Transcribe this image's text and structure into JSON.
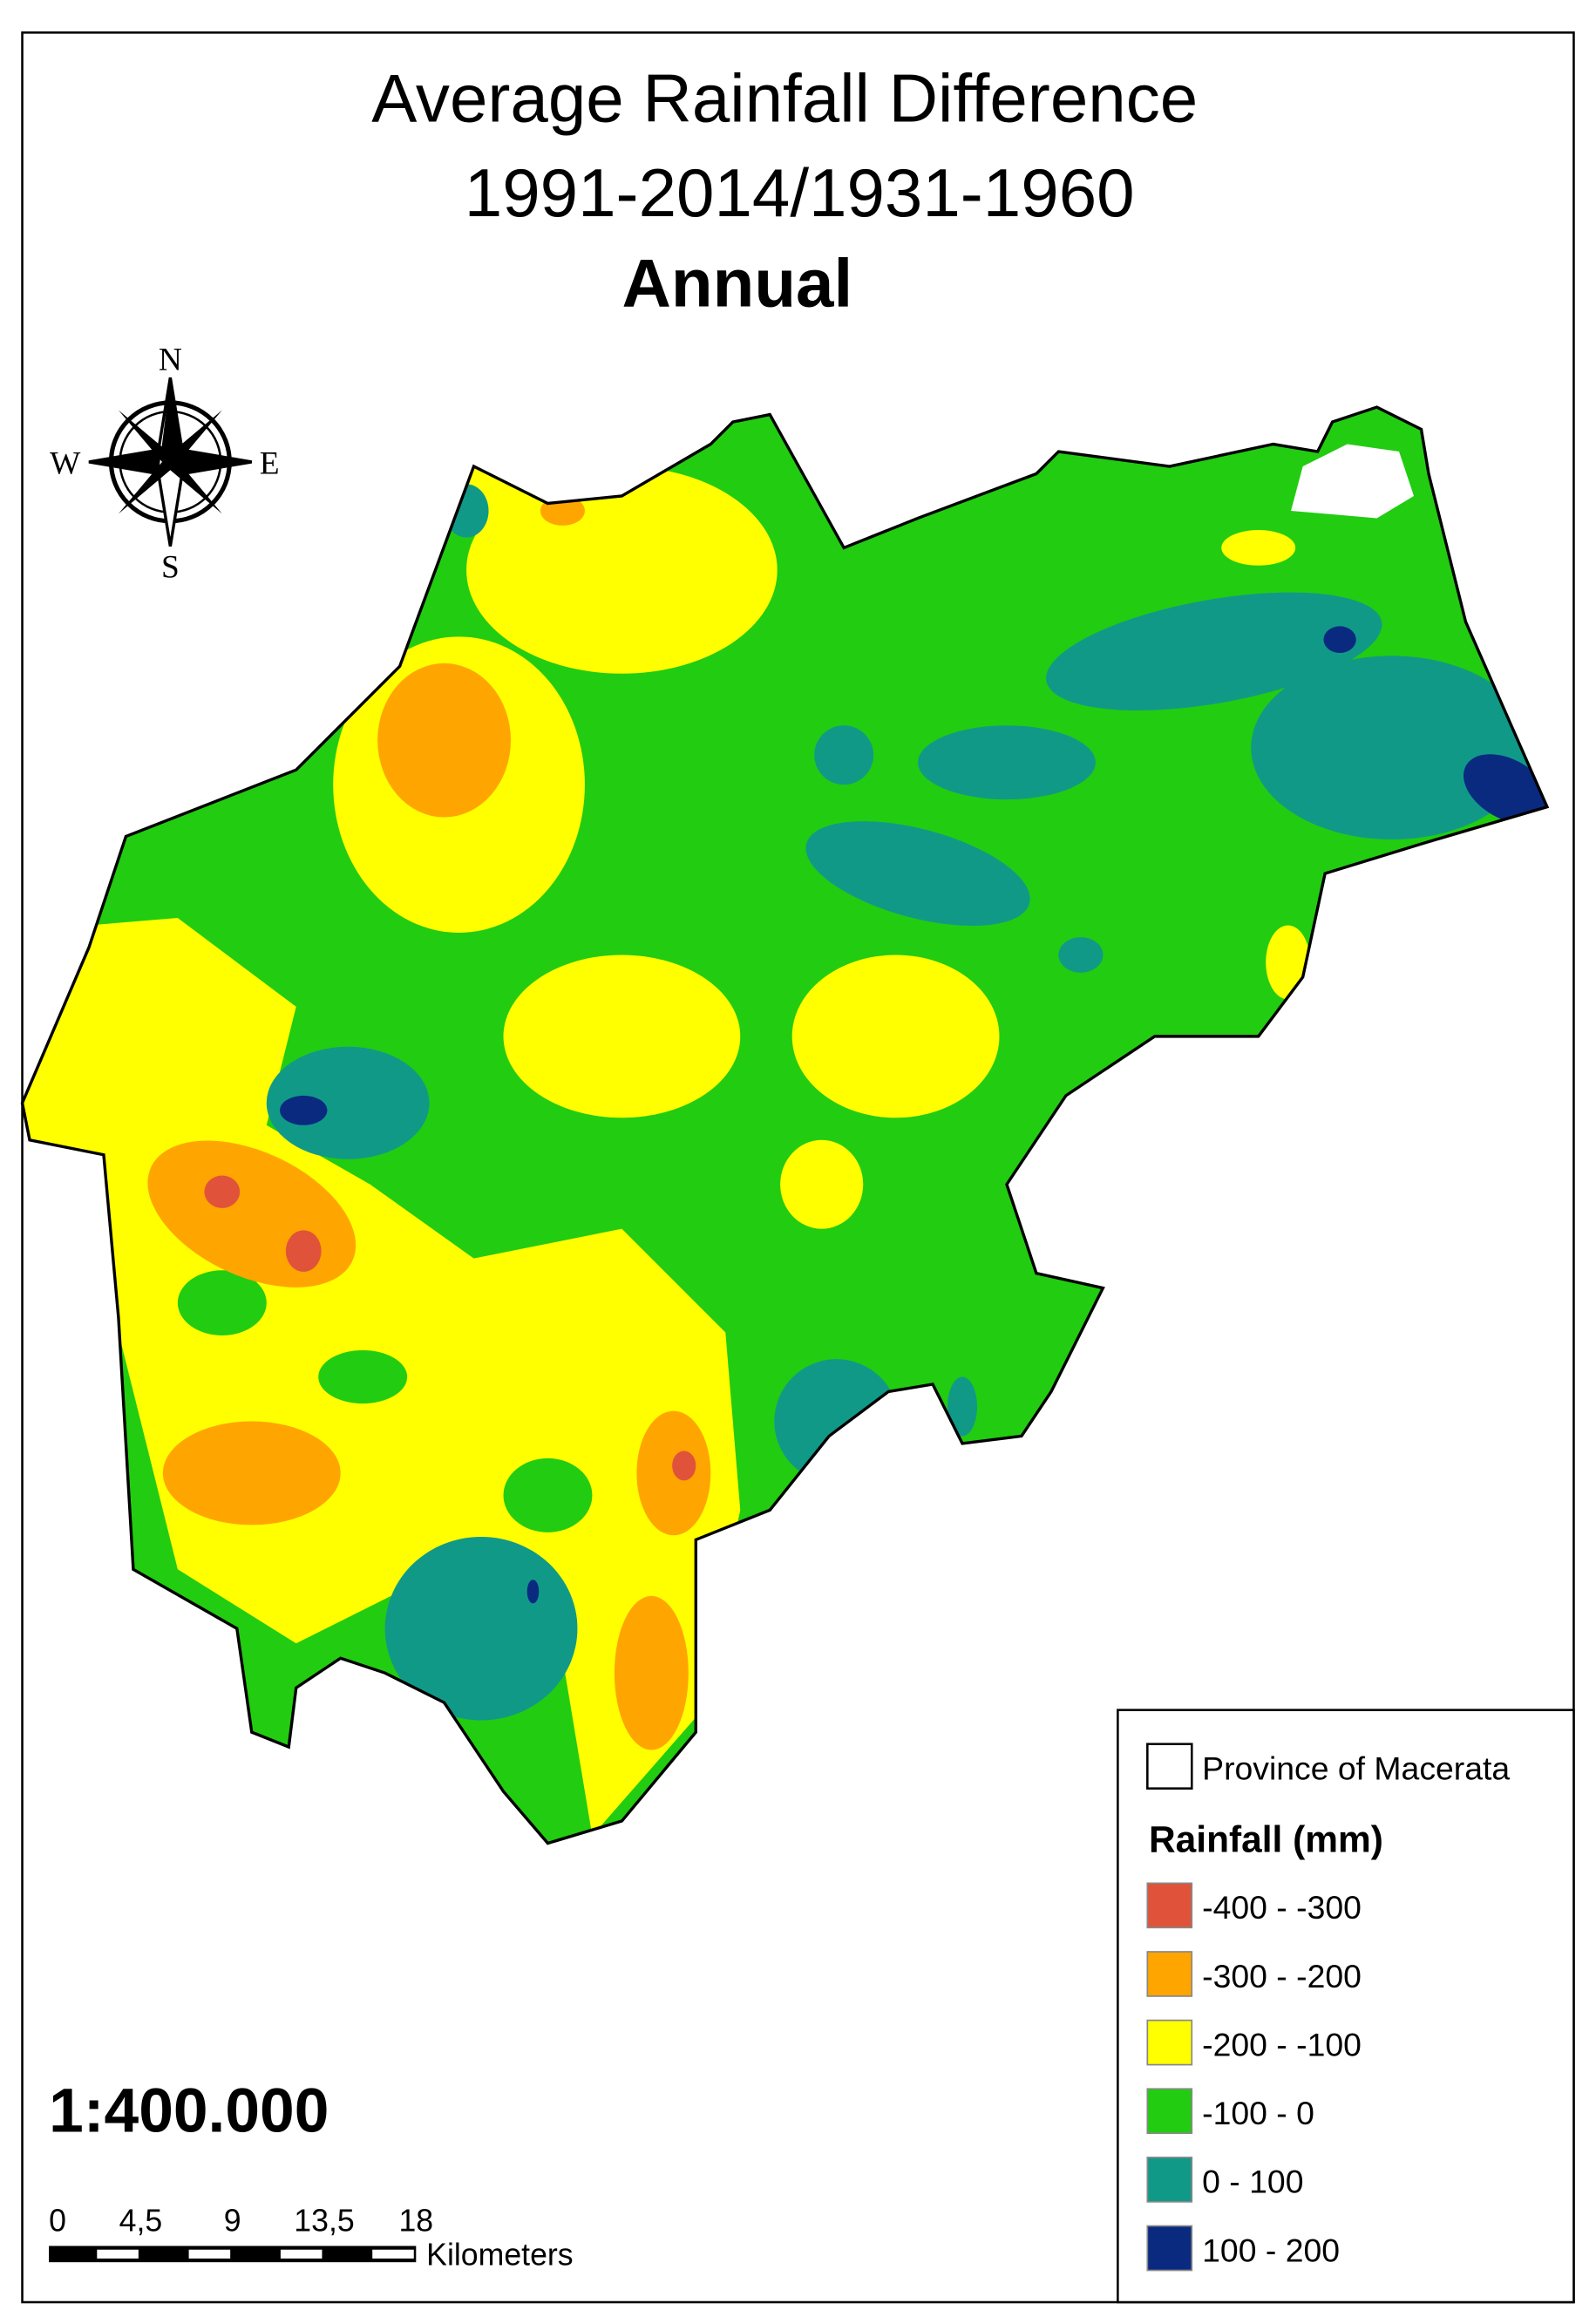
{
  "title": {
    "line1": "Average Rainfall Difference",
    "line2": "1991-2014/1931-1960",
    "line3": "Annual"
  },
  "compass": {
    "n": "N",
    "e": "E",
    "s": "S",
    "w": "W"
  },
  "legend": {
    "boundary": "Province of Macerata",
    "title": "Rainfall (mm)",
    "classes": [
      {
        "label": "-400 - -300",
        "color": "#e0533a"
      },
      {
        "label": "-300 - -200",
        "color": "#ffa500"
      },
      {
        "label": "-200 - -100",
        "color": "#ffff00"
      },
      {
        "label": "-100 - 0",
        "color": "#22cc11"
      },
      {
        "label": "0 - 100",
        "color": "#119988"
      },
      {
        "label": "100 - 200",
        "color": "#0a2a80"
      }
    ]
  },
  "scale": {
    "ratio": "1:400.000",
    "ticks": [
      "0",
      "4,5",
      "9",
      "13,5",
      "18"
    ],
    "unit": "Kilometers"
  }
}
